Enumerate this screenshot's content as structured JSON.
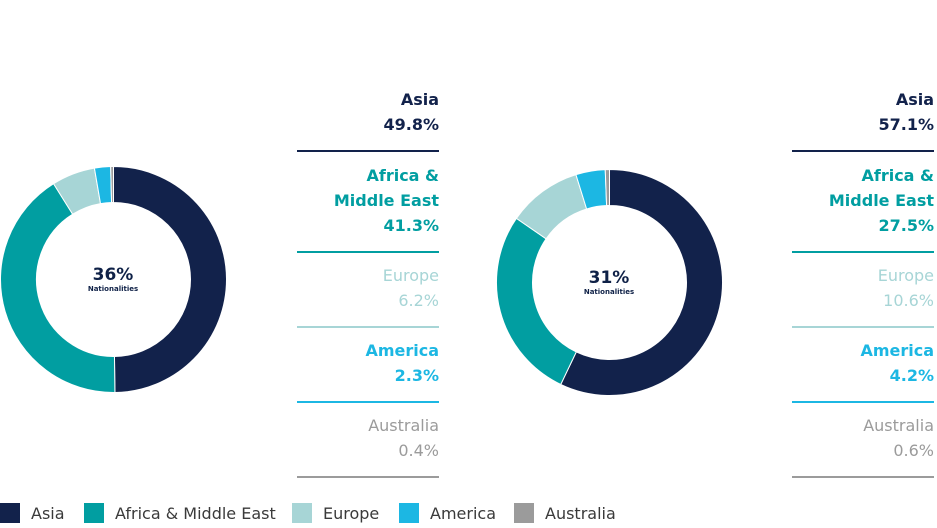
{
  "colors": {
    "asia": "#12224b",
    "africa": "#019ea1",
    "europe": "#a7d5d6",
    "america": "#1cb7e3",
    "australia": "#9b9b9b"
  },
  "chart_data": [
    {
      "type": "pie",
      "center_value": "36%",
      "center_label": "Nationalities",
      "categories": [
        "Asia",
        "Africa & Middle East",
        "Europe",
        "America",
        "Australia"
      ],
      "values": [
        49.8,
        41.3,
        6.2,
        2.3,
        0.4
      ],
      "value_labels": [
        "49.8%",
        "41.3%",
        "6.2%",
        "2.3%",
        "0.4%"
      ]
    },
    {
      "type": "pie",
      "center_value": "31%",
      "center_label": "Nationalities",
      "categories": [
        "Asia",
        "Africa & Middle East",
        "Europe",
        "America",
        "Australia"
      ],
      "values": [
        57.1,
        27.5,
        10.6,
        4.2,
        0.6
      ],
      "value_labels": [
        "57.1%",
        "27.5%",
        "10.6%",
        "4.2%",
        "0.6%"
      ]
    }
  ],
  "list_names": [
    "Asia",
    "Africa &\nMiddle East",
    "Europe",
    "America",
    "Australia"
  ],
  "legend": [
    "Asia",
    "Africa & Middle East",
    "Europe",
    "America",
    "Australia"
  ]
}
